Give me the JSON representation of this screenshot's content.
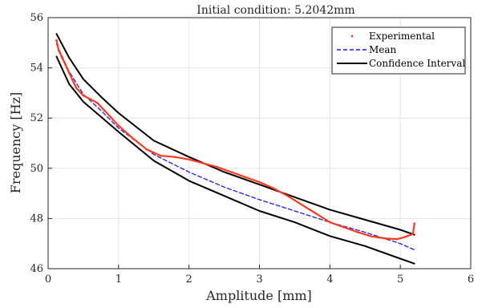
{
  "chart_data": {
    "type": "line",
    "title": "Initial condition: 5.2042mm",
    "xlabel": "Amplitude [mm]",
    "ylabel": "Frequency [Hz]",
    "xlim": [
      0,
      6
    ],
    "ylim": [
      46,
      56
    ],
    "xticks": [
      0,
      1,
      2,
      3,
      4,
      5,
      6
    ],
    "yticks": [
      46,
      48,
      50,
      52,
      54,
      56
    ],
    "grid": true,
    "legend_position": "top-right",
    "series": [
      {
        "name": "Experimental",
        "style": "red-dots-line",
        "color": "#ff3b1f",
        "x": [
          0.12,
          0.15,
          0.2,
          0.3,
          0.4,
          0.5,
          0.6,
          0.7,
          0.8,
          0.9,
          1.0,
          1.2,
          1.4,
          1.6,
          1.8,
          2.0,
          2.2,
          2.4,
          2.6,
          2.8,
          3.0,
          3.2,
          3.4,
          3.6,
          3.8,
          4.0,
          4.2,
          4.4,
          4.6,
          4.8,
          4.95,
          5.05,
          5.1,
          5.15,
          5.18,
          5.2
        ],
        "y": [
          55.1,
          54.7,
          54.4,
          53.8,
          53.2,
          52.9,
          52.75,
          52.6,
          52.3,
          52.0,
          51.7,
          51.2,
          50.75,
          50.5,
          50.45,
          50.35,
          50.2,
          50.05,
          49.85,
          49.65,
          49.45,
          49.2,
          48.9,
          48.55,
          48.2,
          47.85,
          47.65,
          47.45,
          47.28,
          47.2,
          47.18,
          47.25,
          47.3,
          47.35,
          47.4,
          47.8
        ]
      },
      {
        "name": "Mean",
        "style": "dashed",
        "color": "#1f1fe0",
        "x": [
          0.12,
          0.3,
          0.5,
          0.75,
          1.0,
          1.5,
          2.0,
          2.5,
          3.0,
          3.5,
          4.0,
          4.5,
          5.0,
          5.2
        ],
        "y": [
          54.95,
          53.85,
          52.95,
          52.3,
          51.6,
          50.55,
          49.85,
          49.25,
          48.75,
          48.3,
          47.85,
          47.45,
          47.0,
          46.75
        ]
      },
      {
        "name": "Confidence Interval",
        "style": "solid",
        "color": "#000000",
        "x": [
          0.12,
          0.3,
          0.5,
          0.75,
          1.0,
          1.5,
          2.0,
          2.5,
          3.0,
          3.5,
          4.0,
          4.5,
          5.0,
          5.2
        ],
        "y": [
          55.35,
          54.4,
          53.55,
          52.85,
          52.2,
          51.1,
          50.45,
          49.85,
          49.35,
          48.85,
          48.35,
          47.95,
          47.55,
          47.35
        ]
      },
      {
        "name": "",
        "style": "solid",
        "color": "#000000",
        "x": [
          0.12,
          0.3,
          0.5,
          0.75,
          1.0,
          1.5,
          2.0,
          2.5,
          3.0,
          3.5,
          4.0,
          4.5,
          5.0,
          5.2
        ],
        "y": [
          54.45,
          53.35,
          52.65,
          52.05,
          51.45,
          50.3,
          49.5,
          48.9,
          48.3,
          47.85,
          47.3,
          46.9,
          46.4,
          46.2
        ]
      }
    ]
  }
}
